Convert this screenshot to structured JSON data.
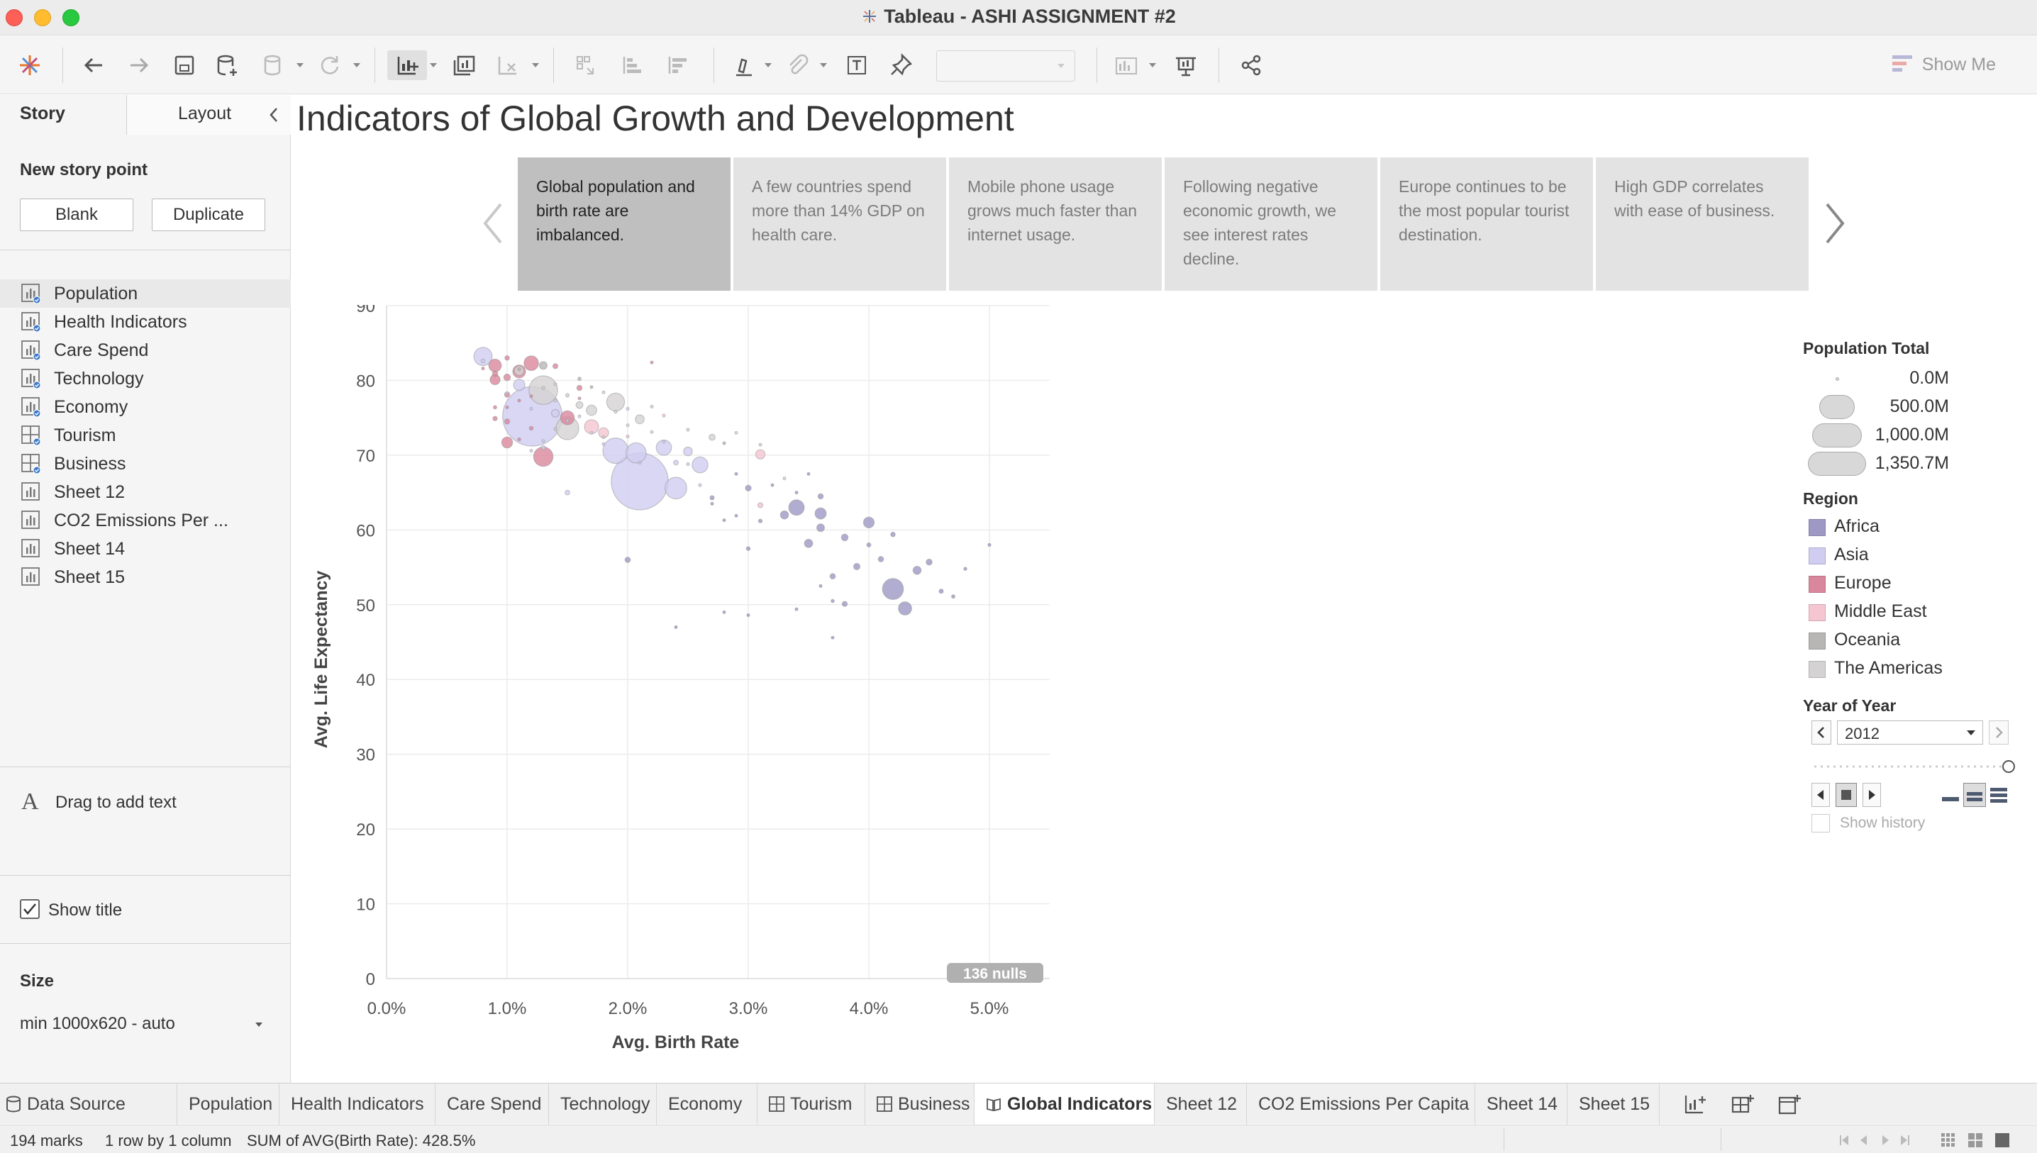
{
  "window": {
    "title": "Tableau - ASHI ASSIGNMENT #2"
  },
  "toolbar": {
    "show_me": "Show Me"
  },
  "left_pane": {
    "tabs": [
      "Story",
      "Layout"
    ],
    "new_story_point": "New story point",
    "blank_button": "Blank",
    "duplicate_button": "Duplicate",
    "sheets": [
      {
        "label": "Population",
        "kind": "worksheet",
        "used": true
      },
      {
        "label": "Health Indicators",
        "kind": "worksheet",
        "used": true
      },
      {
        "label": "Care Spend",
        "kind": "worksheet",
        "used": true
      },
      {
        "label": "Technology",
        "kind": "worksheet",
        "used": true
      },
      {
        "label": "Economy",
        "kind": "worksheet",
        "used": true
      },
      {
        "label": "Tourism",
        "kind": "dashboard",
        "used": true
      },
      {
        "label": "Business",
        "kind": "dashboard",
        "used": true
      },
      {
        "label": "Sheet 12",
        "kind": "worksheet",
        "used": false
      },
      {
        "label": "CO2 Emissions Per ...",
        "kind": "worksheet",
        "used": false
      },
      {
        "label": "Sheet 14",
        "kind": "worksheet",
        "used": false
      },
      {
        "label": "Sheet 15",
        "kind": "worksheet",
        "used": false
      }
    ],
    "drag_text": "Drag to add text",
    "show_title": "Show title",
    "size_heading": "Size",
    "size_value": "min 1000x620 - auto"
  },
  "story": {
    "title": "Indicators of Global Growth and Development",
    "points": [
      "Global population and birth rate are imbalanced.",
      "A few countries spend more than 14% GDP on health care.",
      "Mobile phone usage grows much faster than internet usage.",
      "Following negative economic growth, we see interest rates decline.",
      "Europe continues to be the most popular tourist destination.",
      "High GDP correlates with ease of business."
    ],
    "active_point": 0
  },
  "chart_data": {
    "type": "scatter",
    "xlabel": "Avg. Birth Rate",
    "ylabel": "Avg. Life Expectancy",
    "x_ticks": [
      "0.0%",
      "1.0%",
      "2.0%",
      "3.0%",
      "4.0%",
      "5.0%"
    ],
    "y_ticks": [
      "0",
      "10",
      "20",
      "30",
      "40",
      "50",
      "60",
      "70",
      "80",
      "90"
    ],
    "xlim": [
      0,
      0.055
    ],
    "ylim": [
      0,
      90
    ],
    "nulls_badge": "136 nulls",
    "size_field": "Population Total",
    "colors": {
      "Africa": "#9d98c4",
      "Asia": "#cfcdf0",
      "Europe": "#d9879c",
      "Middle East": "#f5c6d1",
      "Oceania": "#b8b5b5",
      "The Americas": "#d4d2d2"
    },
    "points": [
      {
        "x": 0.0121,
        "y": 75.2,
        "pop": 1350.7,
        "region": "Asia"
      },
      {
        "x": 0.021,
        "y": 66.5,
        "pop": 1236.7,
        "region": "Asia"
      },
      {
        "x": 0.013,
        "y": 78.7,
        "pop": 313.9,
        "region": "The Americas"
      },
      {
        "x": 0.019,
        "y": 70.6,
        "pop": 246.9,
        "region": "Asia"
      },
      {
        "x": 0.024,
        "y": 65.6,
        "pop": 179.2,
        "region": "Asia"
      },
      {
        "x": 0.042,
        "y": 52.1,
        "pop": 168.8,
        "region": "Africa"
      },
      {
        "x": 0.015,
        "y": 73.6,
        "pop": 198.7,
        "region": "The Americas"
      },
      {
        "x": 0.0207,
        "y": 70.3,
        "pop": 154.7,
        "region": "Asia"
      },
      {
        "x": 0.013,
        "y": 69.8,
        "pop": 143.5,
        "region": "Europe"
      },
      {
        "x": 0.008,
        "y": 83.2,
        "pop": 127.6,
        "region": "Asia"
      },
      {
        "x": 0.019,
        "y": 77.1,
        "pop": 120.8,
        "region": "The Americas"
      },
      {
        "x": 0.026,
        "y": 68.7,
        "pop": 96.7,
        "region": "Asia"
      },
      {
        "x": 0.034,
        "y": 63.0,
        "pop": 91.7,
        "region": "Africa"
      },
      {
        "x": 0.012,
        "y": 82.3,
        "pop": 82.0,
        "region": "Europe"
      },
      {
        "x": 0.011,
        "y": 81.2,
        "pop": 63.7,
        "region": "Europe"
      },
      {
        "x": 0.015,
        "y": 75.0,
        "pop": 74.0,
        "region": "Europe"
      },
      {
        "x": 0.017,
        "y": 73.8,
        "pop": 76.4,
        "region": "Middle East"
      },
      {
        "x": 0.009,
        "y": 82.0,
        "pop": 60.9,
        "region": "Europe"
      },
      {
        "x": 0.011,
        "y": 79.4,
        "pop": 49.0,
        "region": "Asia"
      },
      {
        "x": 0.043,
        "y": 49.5,
        "pop": 65.7,
        "region": "Africa"
      },
      {
        "x": 0.04,
        "y": 61.0,
        "pop": 44.7,
        "region": "Africa"
      },
      {
        "x": 0.036,
        "y": 62.2,
        "pop": 47.8,
        "region": "Africa"
      },
      {
        "x": 0.023,
        "y": 71.0,
        "pop": 89.7,
        "region": "Asia"
      },
      {
        "x": 0.02,
        "y": 56.0,
        "pop": 11.0,
        "region": "Africa"
      },
      {
        "x": 0.031,
        "y": 70.1,
        "pop": 33.5,
        "region": "Middle East"
      },
      {
        "x": 0.013,
        "y": 82.0,
        "pop": 22.7,
        "region": "Oceania"
      },
      {
        "x": 0.011,
        "y": 81.3,
        "pop": 34.9,
        "region": "The Americas"
      },
      {
        "x": 0.017,
        "y": 76.0,
        "pop": 41.1,
        "region": "The Americas"
      },
      {
        "x": 0.021,
        "y": 74.8,
        "pop": 30.0,
        "region": "The Americas"
      },
      {
        "x": 0.025,
        "y": 70.5,
        "pop": 29.8,
        "region": "Asia"
      },
      {
        "x": 0.035,
        "y": 58.2,
        "pop": 26.1,
        "region": "Africa"
      },
      {
        "x": 0.044,
        "y": 54.6,
        "pop": 24.5,
        "region": "Africa"
      },
      {
        "x": 0.036,
        "y": 60.3,
        "pop": 22.3,
        "region": "Africa"
      },
      {
        "x": 0.033,
        "y": 62.0,
        "pop": 25.3,
        "region": "Africa"
      },
      {
        "x": 0.016,
        "y": 76.7,
        "pop": 17.6,
        "region": "The Americas"
      },
      {
        "x": 0.018,
        "y": 73.0,
        "pop": 38.5,
        "region": "Middle East"
      },
      {
        "x": 0.009,
        "y": 80.1,
        "pop": 38.5,
        "region": "Europe"
      },
      {
        "x": 0.01,
        "y": 71.7,
        "pop": 45.6,
        "region": "Europe"
      },
      {
        "x": 0.014,
        "y": 75.6,
        "pop": 23.1,
        "region": "Asia"
      },
      {
        "x": 0.039,
        "y": 55.1,
        "pop": 15.8,
        "region": "Africa"
      },
      {
        "x": 0.027,
        "y": 72.4,
        "pop": 14.0,
        "region": "The Americas"
      },
      {
        "x": 0.03,
        "y": 65.6,
        "pop": 13.0,
        "region": "Africa"
      },
      {
        "x": 0.038,
        "y": 59.0,
        "pop": 16.8,
        "region": "Africa"
      },
      {
        "x": 0.045,
        "y": 55.7,
        "pop": 13.6,
        "region": "Africa"
      },
      {
        "x": 0.041,
        "y": 56.1,
        "pop": 10.8,
        "region": "Africa"
      },
      {
        "x": 0.037,
        "y": 53.8,
        "pop": 11.1,
        "region": "Africa"
      },
      {
        "x": 0.031,
        "y": 63.3,
        "pop": 9.5,
        "region": "Middle East"
      },
      {
        "x": 0.042,
        "y": 59.4,
        "pop": 7.6,
        "region": "Africa"
      },
      {
        "x": 0.04,
        "y": 58.0,
        "pop": 6.5,
        "region": "Africa"
      },
      {
        "x": 0.03,
        "y": 57.5,
        "pop": 5.4,
        "region": "Africa"
      },
      {
        "x": 0.024,
        "y": 69.0,
        "pop": 8.5,
        "region": "Asia"
      },
      {
        "x": 0.015,
        "y": 65.0,
        "pop": 8.3,
        "region": "Asia"
      },
      {
        "x": 0.016,
        "y": 79.0,
        "pop": 10.5,
        "region": "Europe"
      },
      {
        "x": 0.027,
        "y": 64.3,
        "pop": 7.0,
        "region": "Africa"
      },
      {
        "x": 0.013,
        "y": 71.0,
        "pop": 6.6,
        "region": "Asia"
      },
      {
        "x": 0.036,
        "y": 64.5,
        "pop": 10.3,
        "region": "Africa"
      },
      {
        "x": 0.046,
        "y": 51.8,
        "pop": 6.7,
        "region": "Africa"
      },
      {
        "x": 0.038,
        "y": 50.1,
        "pop": 9.7,
        "region": "Africa"
      },
      {
        "x": 0.047,
        "y": 51.1,
        "pop": 4.5,
        "region": "Africa"
      },
      {
        "x": 0.048,
        "y": 54.8,
        "pop": 3.6,
        "region": "Africa"
      },
      {
        "x": 0.05,
        "y": 58.0,
        "pop": 3.3,
        "region": "Africa"
      },
      {
        "x": 0.024,
        "y": 47.0,
        "pop": 1.2,
        "region": "Africa"
      },
      {
        "x": 0.028,
        "y": 49.0,
        "pop": 2.0,
        "region": "Africa"
      },
      {
        "x": 0.03,
        "y": 48.6,
        "pop": 1.9,
        "region": "Africa"
      },
      {
        "x": 0.034,
        "y": 49.4,
        "pop": 2.1,
        "region": "Africa"
      },
      {
        "x": 0.037,
        "y": 45.6,
        "pop": 2.3,
        "region": "Africa"
      },
      {
        "x": 0.037,
        "y": 50.5,
        "pop": 4.2,
        "region": "Africa"
      },
      {
        "x": 0.036,
        "y": 52.5,
        "pop": 2.8,
        "region": "Africa"
      },
      {
        "x": 0.035,
        "y": 67.5,
        "pop": 2.1,
        "region": "Africa"
      },
      {
        "x": 0.034,
        "y": 65.0,
        "pop": 1.5,
        "region": "Africa"
      },
      {
        "x": 0.032,
        "y": 66.0,
        "pop": 1.4,
        "region": "Africa"
      },
      {
        "x": 0.031,
        "y": 71.4,
        "pop": 2.0,
        "region": "The Americas"
      },
      {
        "x": 0.029,
        "y": 73.0,
        "pop": 1.8,
        "region": "The Americas"
      },
      {
        "x": 0.028,
        "y": 71.6,
        "pop": 1.7,
        "region": "Oceania"
      },
      {
        "x": 0.029,
        "y": 61.9,
        "pop": 1.1,
        "region": "Africa"
      },
      {
        "x": 0.028,
        "y": 61.3,
        "pop": 1.4,
        "region": "Africa"
      },
      {
        "x": 0.031,
        "y": 61.2,
        "pop": 5.0,
        "region": "Africa"
      },
      {
        "x": 0.027,
        "y": 63.5,
        "pop": 2.0,
        "region": "Africa"
      },
      {
        "x": 0.022,
        "y": 82.4,
        "pop": 0.5,
        "region": "Europe"
      },
      {
        "x": 0.022,
        "y": 73.1,
        "pop": 2.4,
        "region": "Asia"
      },
      {
        "x": 0.023,
        "y": 75.3,
        "pop": 3.3,
        "region": "Middle East"
      },
      {
        "x": 0.025,
        "y": 73.4,
        "pop": 1.5,
        "region": "The Americas"
      },
      {
        "x": 0.02,
        "y": 74.0,
        "pop": 2.1,
        "region": "The Americas"
      },
      {
        "x": 0.018,
        "y": 78.4,
        "pop": 3.2,
        "region": "The Americas"
      },
      {
        "x": 0.02,
        "y": 76.2,
        "pop": 1.3,
        "region": "Asia"
      },
      {
        "x": 0.016,
        "y": 80.2,
        "pop": 4.5,
        "region": "Oceania"
      },
      {
        "x": 0.014,
        "y": 81.9,
        "pop": 9.5,
        "region": "Europe"
      },
      {
        "x": 0.01,
        "y": 80.4,
        "pop": 16.8,
        "region": "Europe"
      },
      {
        "x": 0.009,
        "y": 80.9,
        "pop": 11.1,
        "region": "Europe"
      },
      {
        "x": 0.01,
        "y": 78.1,
        "pop": 10.5,
        "region": "Europe"
      },
      {
        "x": 0.01,
        "y": 74.5,
        "pop": 9.9,
        "region": "Europe"
      },
      {
        "x": 0.012,
        "y": 73.6,
        "pop": 5.4,
        "region": "Europe"
      },
      {
        "x": 0.01,
        "y": 83.0,
        "pop": 8.0,
        "region": "Europe"
      },
      {
        "x": 0.01,
        "y": 76.4,
        "pop": 3.0,
        "region": "Europe"
      },
      {
        "x": 0.011,
        "y": 77.3,
        "pop": 2.1,
        "region": "Europe"
      },
      {
        "x": 0.012,
        "y": 76.2,
        "pop": 3.0,
        "region": "Asia"
      },
      {
        "x": 0.009,
        "y": 74.9,
        "pop": 7.3,
        "region": "Europe"
      },
      {
        "x": 0.009,
        "y": 76.4,
        "pop": 4.3,
        "region": "Europe"
      },
      {
        "x": 0.011,
        "y": 72.1,
        "pop": 3.6,
        "region": "Europe"
      },
      {
        "x": 0.012,
        "y": 77.9,
        "pop": 2.8,
        "region": "Europe"
      },
      {
        "x": 0.014,
        "y": 77.3,
        "pop": 1.3,
        "region": "Asia"
      },
      {
        "x": 0.014,
        "y": 79.5,
        "pop": 2.1,
        "region": "The Americas"
      },
      {
        "x": 0.013,
        "y": 79.0,
        "pop": 3.4,
        "region": "The Americas"
      },
      {
        "x": 0.015,
        "y": 78.0,
        "pop": 4.8,
        "region": "The Americas"
      },
      {
        "x": 0.016,
        "y": 75.2,
        "pop": 2.7,
        "region": "Asia"
      },
      {
        "x": 0.017,
        "y": 73.0,
        "pop": 1.6,
        "region": "Asia"
      },
      {
        "x": 0.018,
        "y": 72.4,
        "pop": 3.1,
        "region": "The Americas"
      },
      {
        "x": 0.012,
        "y": 70.6,
        "pop": 1.1,
        "region": "Asia"
      },
      {
        "x": 0.013,
        "y": 71.9,
        "pop": 2.3,
        "region": "Asia"
      },
      {
        "x": 0.014,
        "y": 73.5,
        "pop": 1.9,
        "region": "The Americas"
      },
      {
        "x": 0.02,
        "y": 72.5,
        "pop": 1.6,
        "region": "Middle East"
      },
      {
        "x": 0.021,
        "y": 69.0,
        "pop": 1.3,
        "region": "Asia"
      },
      {
        "x": 0.025,
        "y": 68.8,
        "pop": 2.5,
        "region": "Asia"
      },
      {
        "x": 0.026,
        "y": 66.0,
        "pop": 1.0,
        "region": "Asia"
      },
      {
        "x": 0.018,
        "y": 71.5,
        "pop": 1.2,
        "region": "Asia"
      },
      {
        "x": 0.029,
        "y": 67.5,
        "pop": 1.1,
        "region": "Africa"
      },
      {
        "x": 0.033,
        "y": 66.9,
        "pop": 1.0,
        "region": "The Americas"
      },
      {
        "x": 0.015,
        "y": 74.6,
        "pop": 1.0,
        "region": "Asia"
      },
      {
        "x": 0.008,
        "y": 81.6,
        "pop": 1.1,
        "region": "Europe"
      },
      {
        "x": 0.008,
        "y": 82.6,
        "pop": 5.2,
        "region": "Asia"
      },
      {
        "x": 0.01,
        "y": 78.3,
        "pop": 1.3,
        "region": "Asia"
      },
      {
        "x": 0.011,
        "y": 81.5,
        "pop": 1.0,
        "region": "Oceania"
      },
      {
        "x": 0.022,
        "y": 76.5,
        "pop": 0.9,
        "region": "The Americas"
      },
      {
        "x": 0.023,
        "y": 71.8,
        "pop": 0.9,
        "region": "Asia"
      },
      {
        "x": 0.016,
        "y": 77.6,
        "pop": 0.8,
        "region": "Europe"
      },
      {
        "x": 0.019,
        "y": 75.8,
        "pop": 0.7,
        "region": "The Americas"
      },
      {
        "x": 0.017,
        "y": 79.1,
        "pop": 0.6,
        "region": "Oceania"
      }
    ]
  },
  "legend": {
    "size_title": "Population Total",
    "size_items": [
      {
        "label": "0.0M",
        "value": 0
      },
      {
        "label": "500.0M",
        "value": 500
      },
      {
        "label": "1,000.0M",
        "value": 1000
      },
      {
        "label": "1,350.7M",
        "value": 1350.7
      }
    ],
    "region_title": "Region",
    "regions": [
      "Africa",
      "Asia",
      "Europe",
      "Middle East",
      "Oceania",
      "The Americas"
    ],
    "year_title": "Year of Year",
    "year_value": "2012",
    "year_progress": 1.0,
    "show_history": "Show history"
  },
  "bottom_tabs": {
    "data_source": "Data Source",
    "tabs": [
      {
        "label": "Population",
        "kind": "sheet"
      },
      {
        "label": "Health Indicators",
        "kind": "sheet"
      },
      {
        "label": "Care Spend",
        "kind": "sheet"
      },
      {
        "label": "Technology",
        "kind": "sheet"
      },
      {
        "label": "Economy",
        "kind": "sheet"
      },
      {
        "label": "Tourism",
        "kind": "dashboard"
      },
      {
        "label": "Business",
        "kind": "dashboard"
      },
      {
        "label": "Global Indicators",
        "kind": "story"
      },
      {
        "label": "Sheet 12",
        "kind": "sheet"
      },
      {
        "label": "CO2 Emissions Per Capita",
        "kind": "sheet"
      },
      {
        "label": "Sheet 14",
        "kind": "sheet"
      },
      {
        "label": "Sheet 15",
        "kind": "sheet"
      }
    ],
    "active": "Global Indicators"
  },
  "status": {
    "marks": "194 marks",
    "rows": "1 row by 1 column",
    "sum": "SUM of AVG(Birth Rate): 428.5%"
  }
}
